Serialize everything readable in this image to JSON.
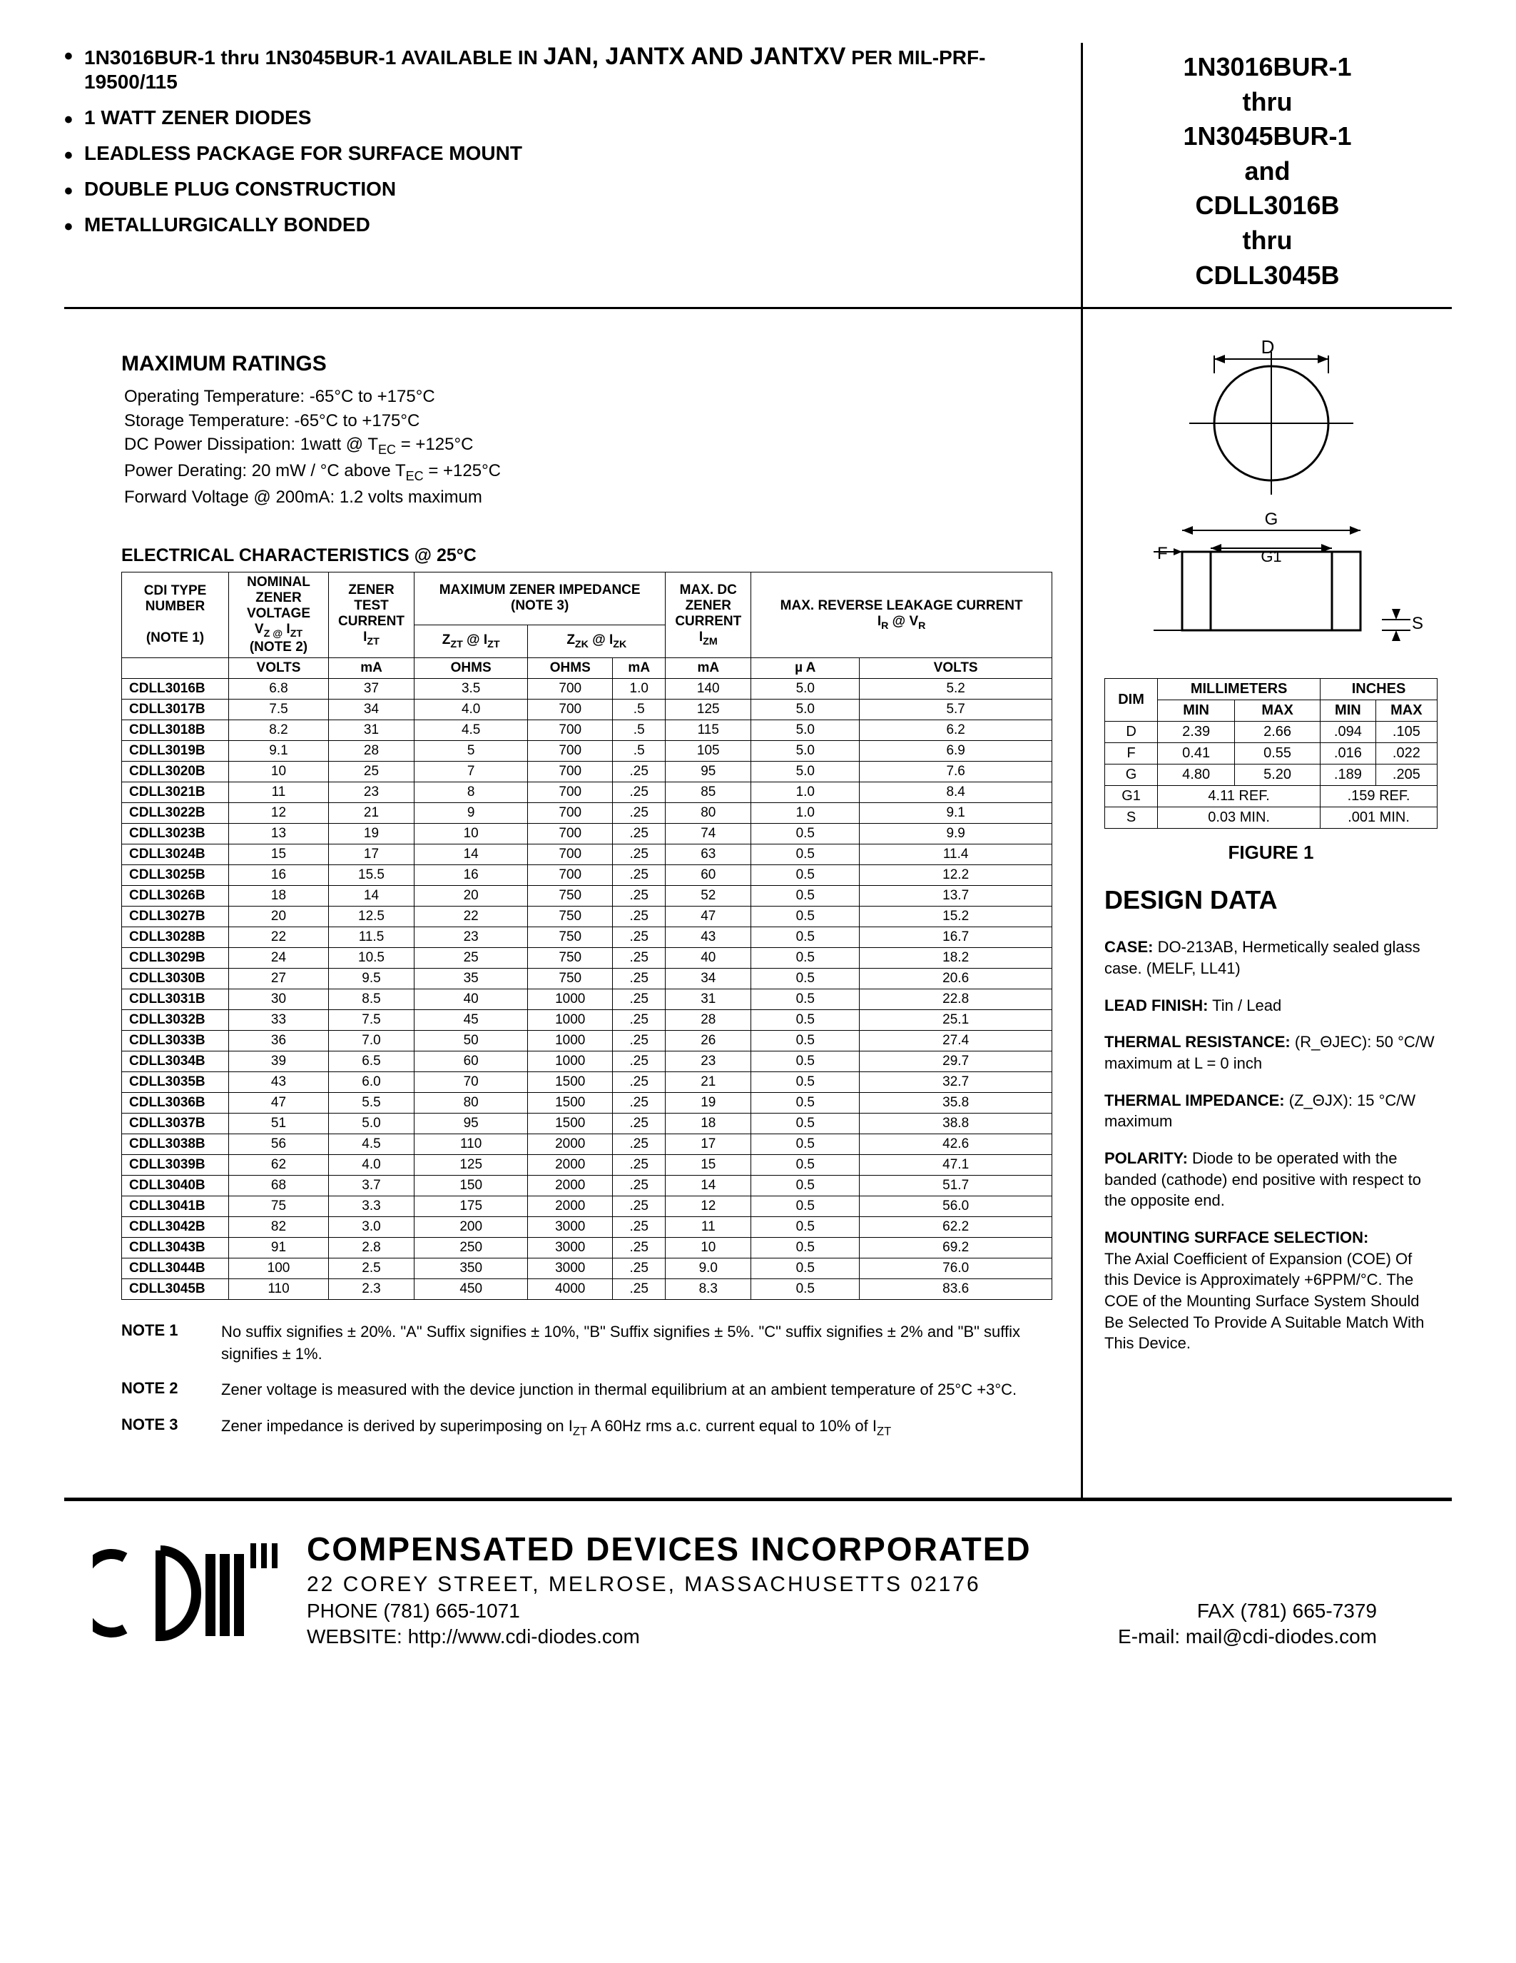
{
  "header": {
    "features": [
      {
        "prefix": "1N3016BUR-1 thru 1N3045BUR-1 AVAILABLE IN ",
        "emph": "JAN, JANTX AND JANTXV",
        "suffix": " PER MIL-PRF-19500/115"
      },
      {
        "text": "1 WATT ZENER DIODES"
      },
      {
        "text": "LEADLESS PACKAGE FOR SURFACE MOUNT"
      },
      {
        "text": "DOUBLE PLUG CONSTRUCTION"
      },
      {
        "text": "METALLURGICALLY BONDED"
      }
    ],
    "title_lines": [
      "1N3016BUR-1",
      "thru",
      "1N3045BUR-1",
      "and",
      "CDLL3016B",
      "thru",
      "CDLL3045B"
    ]
  },
  "max_ratings": {
    "title": "MAXIMUM RATINGS",
    "lines": [
      "Operating Temperature:  -65°C to +175°C",
      "Storage Temperature:  -65°C to +175°C",
      "DC Power Dissipation:  1watt @ T_EC = +125°C",
      "Power Derating: 20 mW / °C above T_EC = +125°C",
      "Forward Voltage @ 200mA: 1.2 volts maximum"
    ]
  },
  "elec": {
    "title": "ELECTRICAL CHARACTERISTICS @ 25°C",
    "col_headers": {
      "c1": "CDI TYPE NUMBER",
      "c1_note": "(NOTE 1)",
      "c2": "NOMINAL ZENER VOLTAGE",
      "c2_sub": "V_Z @ I_ZT",
      "c2_note": "(NOTE 2)",
      "c3": "ZENER TEST CURRENT",
      "c3_sub": "I_ZT",
      "c4": "MAXIMUM  ZENER IMPEDANCE",
      "c4_note": "(NOTE 3)",
      "c4a": "Z_ZT  @ I_ZT",
      "c4b": "Z_ZK @ I_ZK",
      "c5": "MAX. DC ZENER CURRENT",
      "c5_sub": "I_ZM",
      "c6": "MAX. REVERSE LEAKAGE CURRENT",
      "c6_sub": "I_R @ V_R"
    },
    "unit_row": [
      "VOLTS",
      "mA",
      "OHMS",
      "OHMS",
      "mA",
      "mA",
      "µ A",
      "VOLTS"
    ],
    "groups": [
      [
        [
          "CDLL3016B",
          "6.8",
          "37",
          "3.5",
          "700",
          "1.0",
          "140",
          "5.0",
          "5.2"
        ],
        [
          "CDLL3017B",
          "7.5",
          "34",
          "4.0",
          "700",
          ".5",
          "125",
          "5.0",
          "5.7"
        ],
        [
          "CDLL3018B",
          "8.2",
          "31",
          "4.5",
          "700",
          ".5",
          "115",
          "5.0",
          "6.2"
        ],
        [
          "CDLL3019B",
          "9.1",
          "28",
          "5",
          "700",
          ".5",
          "105",
          "5.0",
          "6.9"
        ]
      ],
      [
        [
          "CDLL3020B",
          "10",
          "25",
          "7",
          "700",
          ".25",
          "95",
          "5.0",
          "7.6"
        ],
        [
          "CDLL3021B",
          "11",
          "23",
          "8",
          "700",
          ".25",
          "85",
          "1.0",
          "8.4"
        ],
        [
          "CDLL3022B",
          "12",
          "21",
          "9",
          "700",
          ".25",
          "80",
          "1.0",
          "9.1"
        ],
        [
          "CDLL3023B",
          "13",
          "19",
          "10",
          "700",
          ".25",
          "74",
          "0.5",
          "9.9"
        ]
      ],
      [
        [
          "CDLL3024B",
          "15",
          "17",
          "14",
          "700",
          ".25",
          "63",
          "0.5",
          "11.4"
        ],
        [
          "CDLL3025B",
          "16",
          "15.5",
          "16",
          "700",
          ".25",
          "60",
          "0.5",
          "12.2"
        ],
        [
          "CDLL3026B",
          "18",
          "14",
          "20",
          "750",
          ".25",
          "52",
          "0.5",
          "13.7"
        ],
        [
          "CDLL3027B",
          "20",
          "12.5",
          "22",
          "750",
          ".25",
          "47",
          "0.5",
          "15.2"
        ]
      ],
      [
        [
          "CDLL3028B",
          "22",
          "11.5",
          "23",
          "750",
          ".25",
          "43",
          "0.5",
          "16.7"
        ],
        [
          "CDLL3029B",
          "24",
          "10.5",
          "25",
          "750",
          ".25",
          "40",
          "0.5",
          "18.2"
        ],
        [
          "CDLL3030B",
          "27",
          "9.5",
          "35",
          "750",
          ".25",
          "34",
          "0.5",
          "20.6"
        ],
        [
          "CDLL3031B",
          "30",
          "8.5",
          "40",
          "1000",
          ".25",
          "31",
          "0.5",
          "22.8"
        ]
      ],
      [
        [
          "CDLL3032B",
          "33",
          "7.5",
          "45",
          "1000",
          ".25",
          "28",
          "0.5",
          "25.1"
        ],
        [
          "CDLL3033B",
          "36",
          "7.0",
          "50",
          "1000",
          ".25",
          "26",
          "0.5",
          "27.4"
        ],
        [
          "CDLL3034B",
          "39",
          "6.5",
          "60",
          "1000",
          ".25",
          "23",
          "0.5",
          "29.7"
        ],
        [
          "CDLL3035B",
          "43",
          "6.0",
          "70",
          "1500",
          ".25",
          "21",
          "0.5",
          "32.7"
        ]
      ],
      [
        [
          "CDLL3036B",
          "47",
          "5.5",
          "80",
          "1500",
          ".25",
          "19",
          "0.5",
          "35.8"
        ],
        [
          "CDLL3037B",
          "51",
          "5.0",
          "95",
          "1500",
          ".25",
          "18",
          "0.5",
          "38.8"
        ],
        [
          "CDLL3038B",
          "56",
          "4.5",
          "110",
          "2000",
          ".25",
          "17",
          "0.5",
          "42.6"
        ],
        [
          "CDLL3039B",
          "62",
          "4.0",
          "125",
          "2000",
          ".25",
          "15",
          "0.5",
          "47.1"
        ]
      ],
      [
        [
          "CDLL3040B",
          "68",
          "3.7",
          "150",
          "2000",
          ".25",
          "14",
          "0.5",
          "51.7"
        ],
        [
          "CDLL3041B",
          "75",
          "3.3",
          "175",
          "2000",
          ".25",
          "12",
          "0.5",
          "56.0"
        ],
        [
          "CDLL3042B",
          "82",
          "3.0",
          "200",
          "3000",
          ".25",
          "11",
          "0.5",
          "62.2"
        ],
        [
          "CDLL3043B",
          "91",
          "2.8",
          "250",
          "3000",
          ".25",
          "10",
          "0.5",
          "69.2"
        ]
      ],
      [
        [
          "CDLL3044B",
          "100",
          "2.5",
          "350",
          "3000",
          ".25",
          "9.0",
          "0.5",
          "76.0"
        ],
        [
          "CDLL3045B",
          "110",
          "2.3",
          "450",
          "4000",
          ".25",
          "8.3",
          "0.5",
          "83.6"
        ]
      ]
    ]
  },
  "notes": [
    {
      "label": "NOTE 1",
      "text": "No suffix signifies ± 20%. \"A\" Suffix signifies ± 10%, \"B\" Suffix signifies ± 5%. \"C\" suffix signifies ±  2% and \"B\" suffix signifies ± 1%."
    },
    {
      "label": "NOTE 2",
      "text": "Zener voltage is measured with the device junction in thermal equilibrium at an ambient  temperature of 25°C +3°C."
    },
    {
      "label": "NOTE 3",
      "text": "Zener impedance is derived by superimposing on I_ZT A 60Hz rms a.c. current equal to 10% of I_ZT"
    }
  ],
  "dim_table": {
    "head1": [
      "",
      "MILLIMETERS",
      "INCHES"
    ],
    "head2": [
      "DIM",
      "MIN",
      "MAX",
      "MIN",
      "MAX"
    ],
    "rows": [
      [
        "D",
        "2.39",
        "2.66",
        ".094",
        ".105"
      ],
      [
        "F",
        "0.41",
        "0.55",
        ".016",
        ".022"
      ],
      [
        "G",
        "4.80",
        "5.20",
        ".189",
        ".205"
      ]
    ],
    "ref_rows": [
      [
        "G1",
        "4.11 REF.",
        ".159 REF."
      ],
      [
        "S",
        "0.03 MIN.",
        ".001 MIN."
      ]
    ],
    "caption": "FIGURE 1"
  },
  "design": {
    "title": "DESIGN DATA",
    "case_label": "CASE:",
    "case_text": "  DO-213AB, Hermetically sealed glass case. (MELF, LL41)",
    "lead_label": "LEAD FINISH:",
    "lead_text": " Tin / Lead",
    "tr_label": "THERMAL RESISTANCE:",
    "tr_sym": " (R_ΘJEC):  50 °C/W maximum at L = 0 inch",
    "ti_label": "THERMAL IMPEDANCE:",
    "ti_sym": " (Z_ΘJX): 15 °C/W maximum",
    "pol_label": "POLARITY:",
    "pol_text": " Diode to be operated with the banded (cathode) end positive with respect to the opposite end.",
    "mount_label": "MOUNTING SURFACE SELECTION:",
    "mount_text": "The Axial Coefficient of Expansion (COE) Of this Device is Approximately +6PPM/°C. The COE of the Mounting Surface System Should Be Selected To Provide A Suitable Match With This Device."
  },
  "footer": {
    "company": "COMPENSATED DEVICES INCORPORATED",
    "addr": "22  COREY  STREET,  MELROSE,  MASSACHUSETTS  02176",
    "phone": "PHONE (781) 665-1071",
    "fax": "FAX (781) 665-7379",
    "web": "WEBSITE:  http://www.cdi-diodes.com",
    "email": "E-mail: mail@cdi-diodes.com"
  }
}
